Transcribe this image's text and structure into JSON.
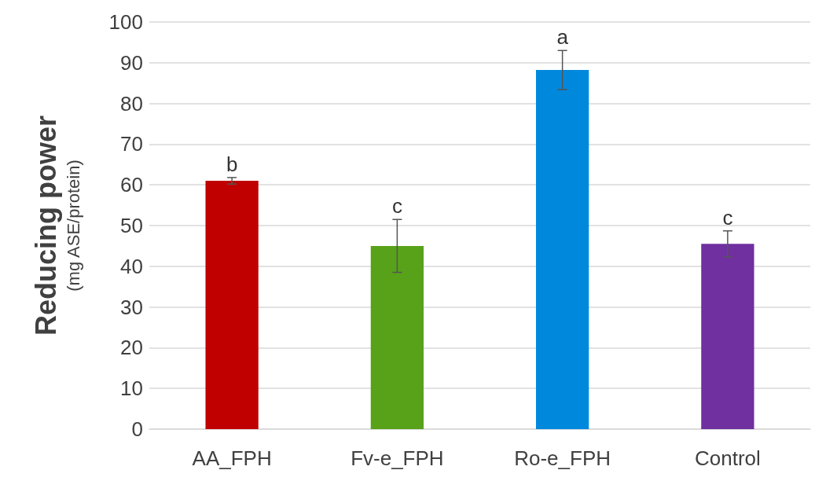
{
  "chart_data": {
    "type": "bar",
    "ylabel": "Reducing power\n(mg ASE/protein)",
    "categories": [
      "AA_FPH",
      "Fv-e_FPH",
      "Ro-e_FPH",
      "Control"
    ],
    "values": [
      61,
      45,
      88.2,
      45.5
    ],
    "colors": [
      "#c00000",
      "#58a21a",
      "#0088dd",
      "#7030a0"
    ],
    "errors": [
      0.8,
      6.5,
      4.8,
      3.2
    ],
    "ylim": [
      0,
      100
    ],
    "yticks": [
      0,
      10,
      20,
      30,
      40,
      50,
      60,
      70,
      80,
      90,
      100
    ],
    "grid": "y",
    "annotations": [
      {
        "text": "b",
        "x": "AA_FPH",
        "y": 61.8
      },
      {
        "text": "c",
        "x": "Fv-e_FPH",
        "y": 51.5
      },
      {
        "text": "a",
        "x": "Ro-e_FPH",
        "y": 93
      },
      {
        "text": "c",
        "x": "Control",
        "y": 48.7
      }
    ]
  }
}
